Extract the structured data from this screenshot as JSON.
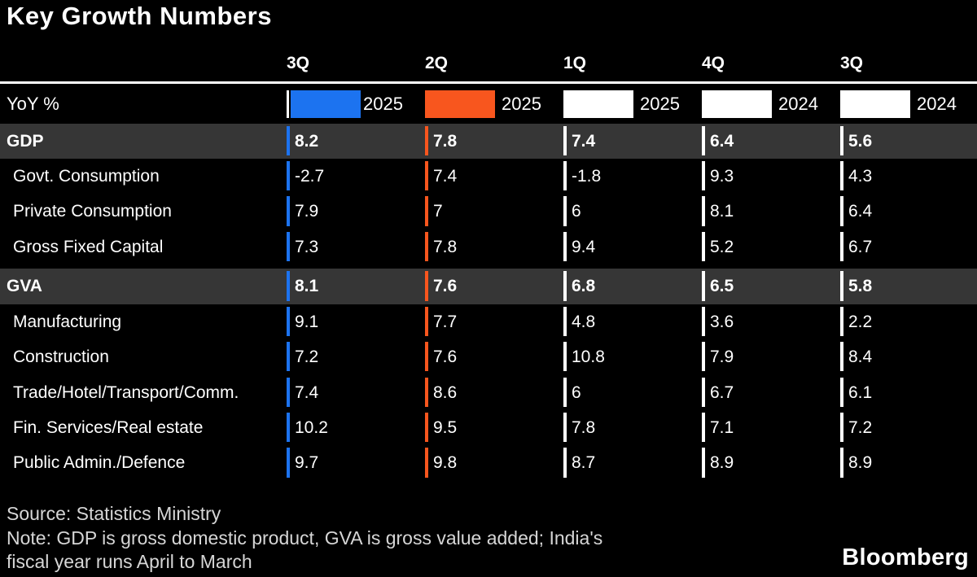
{
  "title": "Key Growth Numbers",
  "legend": {
    "unit_label": "YoY %",
    "entries": [
      {
        "quarter": "3Q",
        "year": "2025",
        "swatch_color": "#1c73f0"
      },
      {
        "quarter": "2Q",
        "year": "2025",
        "swatch_color": "#f8561e"
      },
      {
        "quarter": "1Q",
        "year": "2025",
        "swatch_color": "#ffffff"
      },
      {
        "quarter": "4Q",
        "year": "2024",
        "swatch_color": "#ffffff"
      },
      {
        "quarter": "3Q",
        "year": "2024",
        "swatch_color": "#ffffff"
      }
    ]
  },
  "table": {
    "rows": [
      {
        "label": "GDP",
        "section": true,
        "values": [
          "8.2",
          "7.8",
          "7.4",
          "6.4",
          "5.6"
        ]
      },
      {
        "label": "Govt. Consumption",
        "section": false,
        "values": [
          "-2.7",
          "7.4",
          "-1.8",
          "9.3",
          "4.3"
        ]
      },
      {
        "label": "Private Consumption",
        "section": false,
        "values": [
          "7.9",
          "7",
          "6",
          "8.1",
          "6.4"
        ]
      },
      {
        "label": "Gross Fixed Capital",
        "section": false,
        "values": [
          "7.3",
          "7.8",
          "9.4",
          "5.2",
          "6.7"
        ]
      },
      {
        "label": "GVA",
        "section": true,
        "values": [
          "8.1",
          "7.6",
          "6.8",
          "6.5",
          "5.8"
        ]
      },
      {
        "label": "Manufacturing",
        "section": false,
        "values": [
          "9.1",
          "7.7",
          "4.8",
          "3.6",
          "2.2"
        ]
      },
      {
        "label": "Construction",
        "section": false,
        "values": [
          "7.2",
          "7.6",
          "10.8",
          "7.9",
          "8.4"
        ]
      },
      {
        "label": "Trade/Hotel/Transport/Comm.",
        "section": false,
        "values": [
          "7.4",
          "8.6",
          "6",
          "6.7",
          "6.1"
        ]
      },
      {
        "label": "Fin. Services/Real estate",
        "section": false,
        "values": [
          "10.2",
          "9.5",
          "7.8",
          "7.1",
          "7.2"
        ]
      },
      {
        "label": "Public Admin./Defence",
        "section": false,
        "values": [
          "9.7",
          "9.8",
          "8.7",
          "8.9",
          "8.9"
        ]
      }
    ]
  },
  "footer": {
    "source": "Source: Statistics Ministry",
    "note_lines": [
      "Note: GDP is gross domestic product, GVA is gross value added; India's",
      "fiscal year runs April to March"
    ],
    "logo": "Bloomberg"
  },
  "colors": {
    "background": "#000000",
    "section_row_bg": "#363636",
    "accent_blue": "#1c73f0",
    "accent_orange": "#f8561e",
    "footer_text": "#d6d6d6"
  },
  "chart_data": {
    "type": "table",
    "title": "Key Growth Numbers",
    "unit": "YoY %",
    "columns": [
      "3Q 2025",
      "2Q 2025",
      "1Q 2025",
      "4Q 2024",
      "3Q 2024"
    ],
    "series": [
      {
        "name": "GDP",
        "values": [
          8.2,
          7.8,
          7.4,
          6.4,
          5.6
        ]
      },
      {
        "name": "Govt. Consumption",
        "values": [
          -2.7,
          7.4,
          -1.8,
          9.3,
          4.3
        ]
      },
      {
        "name": "Private Consumption",
        "values": [
          7.9,
          7,
          6,
          8.1,
          6.4
        ]
      },
      {
        "name": "Gross Fixed Capital",
        "values": [
          7.3,
          7.8,
          9.4,
          5.2,
          6.7
        ]
      },
      {
        "name": "GVA",
        "values": [
          8.1,
          7.6,
          6.8,
          6.5,
          5.8
        ]
      },
      {
        "name": "Manufacturing",
        "values": [
          9.1,
          7.7,
          4.8,
          3.6,
          2.2
        ]
      },
      {
        "name": "Construction",
        "values": [
          7.2,
          7.6,
          10.8,
          7.9,
          8.4
        ]
      },
      {
        "name": "Trade/Hotel/Transport/Comm.",
        "values": [
          7.4,
          8.6,
          6,
          6.7,
          6.1
        ]
      },
      {
        "name": "Fin. Services/Real estate",
        "values": [
          10.2,
          9.5,
          7.8,
          7.1,
          7.2
        ]
      },
      {
        "name": "Public Admin./Defence",
        "values": [
          9.7,
          9.8,
          8.7,
          8.9,
          8.9
        ]
      }
    ],
    "source": "Statistics Ministry",
    "note": "GDP is gross domestic product, GVA is gross value added; India's fiscal year runs April to March"
  }
}
